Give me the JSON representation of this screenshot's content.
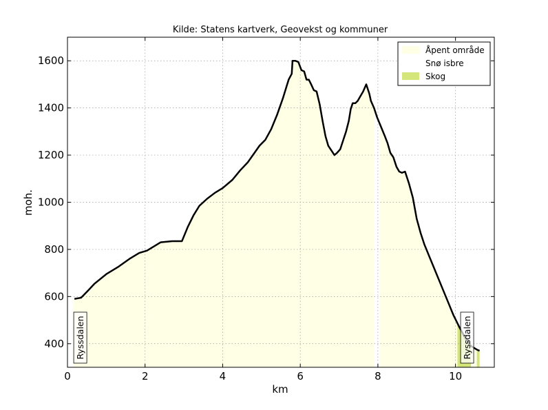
{
  "chart_data": {
    "type": "area",
    "title": "Kilde: Statens kartverk, Geovekst og kommuner",
    "xlabel": "km",
    "ylabel": "moh.",
    "xlim": [
      0,
      11
    ],
    "ylim": [
      300,
      1700
    ],
    "xticks": [
      0,
      2,
      4,
      6,
      8,
      10
    ],
    "yticks": [
      400,
      600,
      800,
      1000,
      1200,
      1400,
      1600
    ],
    "grid": true,
    "legend_position": "top-right",
    "legend": [
      {
        "label": "Åpent område",
        "color": "#ffffe6"
      },
      {
        "label": "Snø isbre",
        "color": "#ffffff"
      },
      {
        "label": "Skog",
        "color": "#d4e57a"
      }
    ],
    "land_cover": [
      {
        "type": "Åpent område",
        "from": 0.15,
        "to": 7.9
      },
      {
        "type": "Snø isbre",
        "from": 7.9,
        "to": 8.05
      },
      {
        "type": "Åpent område",
        "from": 8.05,
        "to": 10.05
      },
      {
        "type": "Skog",
        "from": 10.05,
        "to": 10.4
      },
      {
        "type": "Åpent område",
        "from": 10.4,
        "to": 10.55
      },
      {
        "type": "Skog",
        "from": 10.55,
        "to": 10.62
      }
    ],
    "annotations": [
      {
        "text": "Ryssdalen",
        "x": 0.33
      },
      {
        "text": "Ryssdalen",
        "x": 10.3
      }
    ],
    "series": [
      {
        "x": [
          0.18,
          0.35,
          0.5,
          0.7,
          1.0,
          1.3,
          1.6,
          1.85,
          2.05,
          2.25,
          2.4,
          2.7,
          2.95,
          3.1,
          3.25,
          3.4,
          3.6,
          3.8,
          4.0,
          4.25,
          4.45,
          4.65,
          4.8,
          4.95,
          5.1,
          5.25,
          5.4,
          5.55,
          5.7,
          5.78,
          5.8,
          5.87,
          5.95,
          6.03,
          6.1,
          6.16,
          6.22,
          6.28,
          6.35,
          6.42,
          6.5,
          6.58,
          6.65,
          6.72,
          6.8,
          6.88,
          6.95,
          7.03,
          7.1,
          7.18,
          7.25,
          7.3,
          7.35,
          7.42,
          7.48,
          7.55,
          7.62,
          7.7,
          7.78,
          7.82,
          7.9,
          7.98,
          8.08,
          8.18,
          8.25,
          8.32,
          8.4,
          8.48,
          8.55,
          8.62,
          8.7,
          8.8,
          8.9,
          9.0,
          9.1,
          9.2,
          9.35,
          9.5,
          9.65,
          9.8,
          9.95,
          10.1,
          10.25,
          10.4,
          10.55,
          10.62
        ],
        "y": [
          590,
          595,
          620,
          655,
          695,
          725,
          760,
          785,
          795,
          815,
          830,
          835,
          835,
          895,
          945,
          985,
          1015,
          1040,
          1060,
          1095,
          1135,
          1170,
          1205,
          1240,
          1265,
          1310,
          1370,
          1440,
          1520,
          1545,
          1600,
          1600,
          1595,
          1560,
          1555,
          1520,
          1520,
          1500,
          1475,
          1470,
          1415,
          1340,
          1280,
          1240,
          1220,
          1200,
          1210,
          1225,
          1260,
          1300,
          1345,
          1395,
          1420,
          1420,
          1430,
          1450,
          1470,
          1500,
          1460,
          1430,
          1400,
          1360,
          1320,
          1280,
          1250,
          1210,
          1190,
          1150,
          1130,
          1125,
          1130,
          1080,
          1020,
          930,
          870,
          820,
          760,
          700,
          640,
          580,
          520,
          470,
          425,
          390,
          375,
          370
        ]
      }
    ]
  }
}
